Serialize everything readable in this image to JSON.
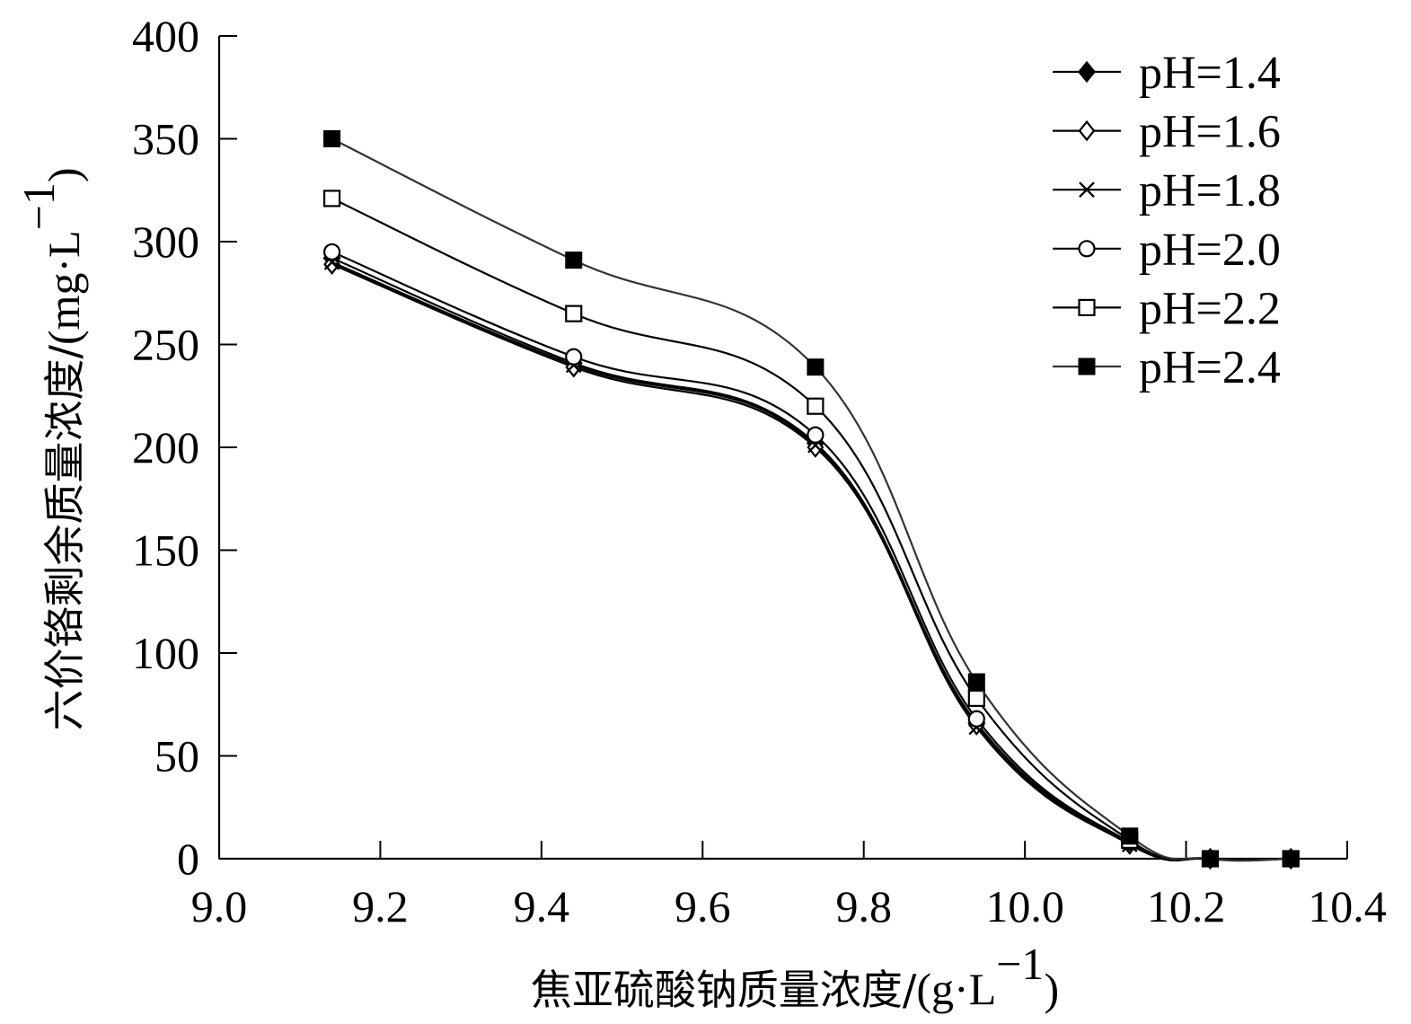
{
  "chart_data": {
    "type": "line",
    "xlabel_main": "焦亚硫酸钠质量浓度/",
    "xlabel_unit": "(g·L",
    "xlabel_sup": "−1",
    "xlabel_close": ")",
    "ylabel_main": "六价铬剩余质量浓度/",
    "ylabel_unit": "(mg·L",
    "ylabel_sup": "−1",
    "ylabel_close": ")",
    "xlim": [
      9.0,
      10.4
    ],
    "ylim": [
      0,
      400
    ],
    "x_ticks": [
      9.0,
      9.2,
      9.4,
      9.6,
      9.8,
      10.0,
      10.2,
      10.4
    ],
    "x_tick_labels": [
      "9.0",
      "9.2",
      "9.4",
      "9.6",
      "9.8",
      "10.0",
      "10.2",
      "10.4"
    ],
    "y_ticks": [
      0,
      50,
      100,
      150,
      200,
      250,
      300,
      350,
      400
    ],
    "y_tick_labels": [
      "0",
      "50",
      "100",
      "150",
      "200",
      "250",
      "300",
      "350",
      "400"
    ],
    "grid": false,
    "legend_position": "top-right",
    "x": [
      9.14,
      9.44,
      9.74,
      9.94,
      10.13,
      10.23,
      10.33
    ],
    "series": [
      {
        "name": "pH=1.4",
        "marker": "filled-diamond",
        "color": "#000000",
        "values": [
          292,
          241,
          202,
          66,
          8,
          0,
          0
        ]
      },
      {
        "name": "pH=1.6",
        "marker": "open-diamond",
        "color": "#000000",
        "values": [
          289,
          239,
          200,
          65,
          7,
          0,
          0
        ]
      },
      {
        "name": "pH=1.8",
        "marker": "cross",
        "color": "#000000",
        "values": [
          290,
          240,
          201,
          64,
          7,
          0,
          0
        ]
      },
      {
        "name": "pH=2.0",
        "marker": "open-circle",
        "color": "#000000",
        "values": [
          295,
          244,
          206,
          68,
          8,
          0,
          0
        ]
      },
      {
        "name": "pH=2.2",
        "marker": "open-square",
        "color": "#000000",
        "values": [
          321,
          265,
          220,
          78,
          9,
          0,
          0
        ]
      },
      {
        "name": "pH=2.4",
        "marker": "filled-square",
        "color": "#333333",
        "values": [
          350,
          291,
          239,
          86,
          11,
          0,
          0
        ]
      }
    ]
  }
}
